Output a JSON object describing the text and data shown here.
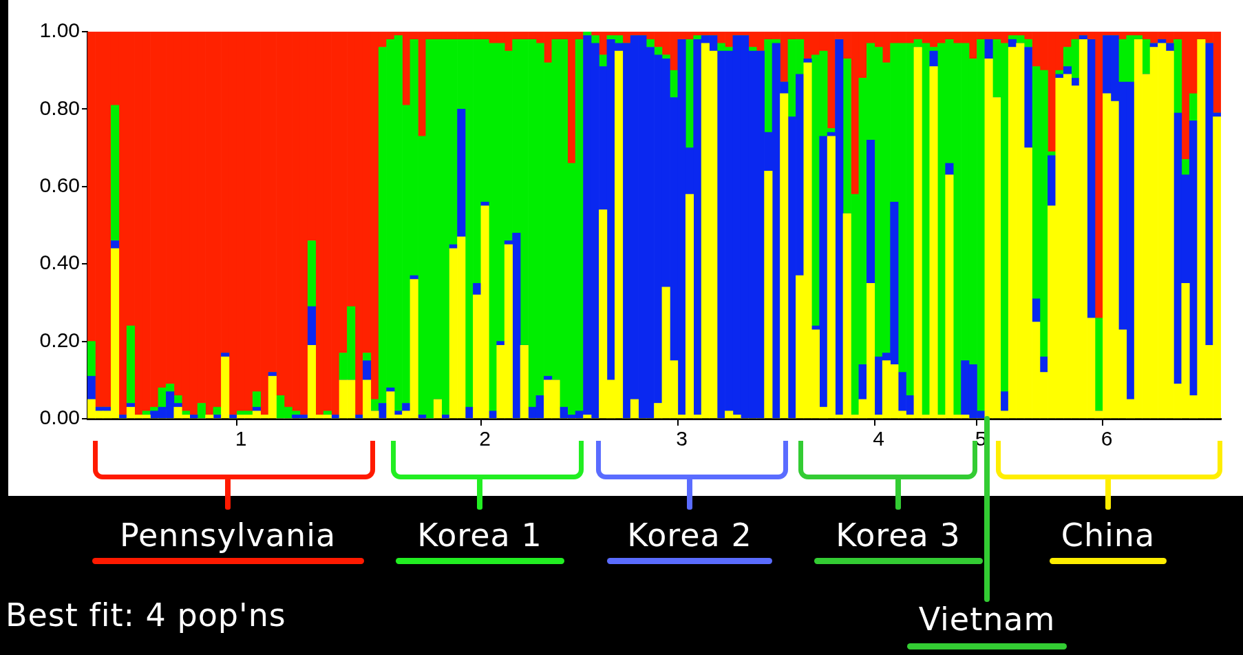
{
  "chart_data": {
    "type": "bar",
    "stacked": true,
    "categories": [
      null,
      null,
      null,
      null,
      null,
      null,
      null,
      null,
      null,
      null,
      null,
      null,
      null,
      null,
      null,
      null,
      null,
      null,
      null,
      "1",
      null,
      null,
      null,
      null,
      null,
      null,
      null,
      null,
      null,
      null,
      null,
      null,
      null,
      null,
      null,
      null,
      null,
      null,
      null,
      null,
      null,
      null,
      null,
      null,
      null,
      null,
      null,
      null,
      null,
      null,
      "2",
      null,
      null,
      null,
      null,
      null,
      null,
      null,
      null,
      null,
      null,
      null,
      null,
      null,
      null,
      null,
      null,
      null,
      null,
      null,
      null,
      null,
      null,
      null,
      null,
      "3",
      null,
      null,
      null,
      null,
      null,
      null,
      null,
      null,
      null,
      null,
      null,
      null,
      null,
      null,
      null,
      null,
      null,
      null,
      null,
      null,
      null,
      null,
      null,
      null,
      "4",
      null,
      null,
      null,
      null,
      null,
      null,
      null,
      null,
      null,
      null,
      null,
      null,
      "5",
      null,
      null,
      null,
      null,
      null,
      null,
      null,
      null,
      null,
      null,
      null,
      null,
      null,
      null,
      null,
      "6",
      null,
      null,
      null,
      null,
      null,
      null,
      null,
      null,
      null,
      null,
      null,
      null,
      null,
      null
    ],
    "series": [
      {
        "color": "#ffff00",
        "values": [
          0.05,
          0.02,
          0.02,
          0.44,
          0,
          0.03,
          0.01,
          0.01,
          0,
          0,
          0,
          0.03,
          0.01,
          0,
          0,
          0.01,
          0,
          0.16,
          0,
          0.01,
          0.01,
          0.02,
          0.01,
          0.11,
          0,
          0,
          0,
          0,
          0.19,
          0.01,
          0.01,
          0,
          0.1,
          0.1,
          0,
          0.1,
          0.02,
          0,
          0.07,
          0.01,
          0.02,
          0.36,
          0,
          0,
          0.05,
          0,
          0.44,
          0.47,
          0,
          0.32,
          0.55,
          0,
          0.19,
          0.45,
          0,
          0.19,
          0,
          0,
          0.1,
          0.1,
          0,
          0,
          0,
          0.01,
          0,
          0.54,
          0.1,
          0.95,
          0,
          0.05,
          0,
          0,
          0.04,
          0.34,
          0.15,
          0.01,
          0.58,
          0.01,
          0.97,
          0.95,
          0,
          0.02,
          0.01,
          0,
          0,
          0,
          0.64,
          0,
          0.84,
          0,
          0.37,
          0.92,
          0.23,
          0.03,
          0.73,
          0.01,
          0.53,
          0.01,
          0.05,
          0.35,
          0.01,
          0.15,
          0.14,
          0.02,
          0.01,
          0.96,
          0.01,
          0.91,
          0.01,
          0.63,
          0.01,
          0.01,
          0,
          0,
          0.93,
          0.83,
          0.02,
          0.96,
          0.97,
          0.7,
          0.25,
          0.12,
          0.55,
          0.88,
          0.89,
          0.86,
          0.98,
          0.26,
          0.02,
          0.84,
          0.82,
          0.23,
          0.05,
          0.98,
          0.89,
          0.96,
          0.97,
          0.95,
          0.09,
          0.35,
          0.06,
          0.98,
          0.19,
          0.78
        ]
      },
      {
        "color": "#0a28f0",
        "values": [
          0.06,
          0.01,
          0.01,
          0.02,
          0.01,
          0.01,
          0,
          0,
          0.02,
          0.03,
          0.07,
          0.01,
          0,
          0.01,
          0,
          0,
          0.01,
          0.01,
          0.01,
          0,
          0,
          0.01,
          0,
          0.01,
          0,
          0,
          0.01,
          0.01,
          0.1,
          0,
          0,
          0.01,
          0,
          0,
          0.01,
          0.05,
          0,
          0.04,
          0.01,
          0.01,
          0.02,
          0.01,
          0.01,
          0,
          0,
          0.01,
          0.01,
          0.33,
          0.03,
          0.03,
          0.01,
          0.02,
          0.01,
          0.01,
          0.48,
          0,
          0.03,
          0.06,
          0.01,
          0,
          0.03,
          0.01,
          0.02,
          0.98,
          0.97,
          0.37,
          0.88,
          0.02,
          0.97,
          0.94,
          0.99,
          0.96,
          0.9,
          0.59,
          0.68,
          0.97,
          0.12,
          0.97,
          0.02,
          0.04,
          0.95,
          0.93,
          0.98,
          0.99,
          0.95,
          0.95,
          0.1,
          0.97,
          0.03,
          0.78,
          0.52,
          0.01,
          0.01,
          0.7,
          0.01,
          0.97,
          0,
          0,
          0.09,
          0.37,
          0.15,
          0.02,
          0.42,
          0.1,
          0.05,
          0,
          0,
          0.04,
          0,
          0.03,
          0,
          0.14,
          0.14,
          0.02,
          0.05,
          0,
          0.05,
          0.02,
          0,
          0.26,
          0.06,
          0.04,
          0.13,
          0.01,
          0.02,
          0.02,
          0.01,
          0.72,
          0,
          0.15,
          0.17,
          0.64,
          0.82,
          0,
          0,
          0.01,
          0.01,
          0.02,
          0.7,
          0.28,
          0.71,
          0,
          0.78,
          0.01
        ]
      },
      {
        "color": "#00ee00",
        "values": [
          0.09,
          0,
          0,
          0.35,
          0,
          0.2,
          0,
          0.01,
          0.01,
          0.05,
          0.02,
          0.02,
          0.01,
          0,
          0.04,
          0,
          0.02,
          0,
          0,
          0.01,
          0.01,
          0.04,
          0,
          0,
          0.06,
          0.03,
          0.01,
          0,
          0.17,
          0,
          0.01,
          0,
          0.07,
          0.19,
          0,
          0.02,
          0.03,
          0.92,
          0.9,
          0.97,
          0.77,
          0.61,
          0.72,
          0.98,
          0.93,
          0.97,
          0.53,
          0.18,
          0.95,
          0.63,
          0.42,
          0.95,
          0.77,
          0.49,
          0.5,
          0.79,
          0.95,
          0.91,
          0.81,
          0.88,
          0.95,
          0.65,
          0.96,
          0.01,
          0.02,
          0.03,
          0.01,
          0.02,
          0,
          0,
          0,
          0.02,
          0.02,
          0.01,
          0.07,
          0,
          0.28,
          0.01,
          0,
          0,
          0.02,
          0.01,
          0,
          0,
          0.01,
          0,
          0.24,
          0.01,
          0,
          0.2,
          0.09,
          0,
          0.7,
          0.22,
          0.01,
          0,
          0.4,
          0.57,
          0.74,
          0.25,
          0.8,
          0.75,
          0.41,
          0.85,
          0.91,
          0.02,
          0.96,
          0.01,
          0.96,
          0.32,
          0.96,
          0.82,
          0.79,
          0.96,
          0,
          0.15,
          0.9,
          0.01,
          0.02,
          0.02,
          0.6,
          0.74,
          0.01,
          0.01,
          0.05,
          0.1,
          0,
          0,
          0.24,
          0,
          0,
          0.11,
          0.12,
          0.01,
          0.09,
          0,
          0,
          0,
          0.19,
          0.04,
          0.07,
          0,
          0,
          0
        ]
      },
      {
        "color": "#ff2200",
        "values": [
          0.8,
          0.97,
          0.97,
          0.19,
          0.99,
          0.76,
          0.99,
          0.98,
          0.97,
          0.92,
          0.91,
          0.94,
          0.98,
          0.99,
          0.96,
          0.99,
          0.97,
          0.83,
          0.99,
          0.98,
          0.98,
          0.93,
          0.99,
          0.88,
          0.94,
          0.97,
          0.98,
          0.99,
          0.54,
          0.99,
          0.98,
          0.99,
          0.83,
          0.71,
          0.99,
          0.83,
          0.95,
          0.04,
          0.02,
          0.01,
          0.19,
          0.02,
          0.27,
          0.02,
          0.02,
          0.02,
          0.02,
          0.02,
          0.02,
          0.02,
          0.02,
          0.03,
          0.03,
          0.05,
          0.02,
          0.02,
          0.02,
          0.03,
          0.08,
          0.02,
          0.02,
          0.34,
          0.02,
          0,
          0.01,
          0.06,
          0.01,
          0.01,
          0.03,
          0.01,
          0.01,
          0.02,
          0.04,
          0.06,
          0.1,
          0.02,
          0.02,
          0.01,
          0.01,
          0.01,
          0.03,
          0.04,
          0.01,
          0.01,
          0.04,
          0.05,
          0.02,
          0.02,
          0.13,
          0.02,
          0.02,
          0.07,
          0.06,
          0.05,
          0.25,
          0.02,
          0.07,
          0.42,
          0.12,
          0.03,
          0.04,
          0.08,
          0.03,
          0.03,
          0.03,
          0.02,
          0.03,
          0.04,
          0.03,
          0.02,
          0.03,
          0.03,
          0.07,
          0.02,
          0.02,
          0.02,
          0.03,
          0.01,
          0.01,
          0.02,
          0.09,
          0.1,
          0.31,
          0.1,
          0.04,
          0.02,
          0.01,
          0.02,
          0.74,
          0.01,
          0.01,
          0.02,
          0.01,
          0.01,
          0.02,
          0.03,
          0.02,
          0.03,
          0.02,
          0.33,
          0.16,
          0.02,
          0.03,
          0.21
        ]
      }
    ],
    "ylim": [
      0,
      1
    ],
    "yticks": [
      {
        "value": 0,
        "label": "0.00"
      },
      {
        "value": 0.2,
        "label": "0.20"
      },
      {
        "value": 0.4,
        "label": "0.40"
      },
      {
        "value": 0.6,
        "label": "0.60"
      },
      {
        "value": 0.8,
        "label": "0.80"
      },
      {
        "value": 1,
        "label": "1.00"
      }
    ],
    "annotations": [
      "Pennsylvania",
      "Korea 1",
      "Korea 2",
      "Korea 3",
      "China",
      "Vietnam",
      "Best fit: 4 pop'ns"
    ]
  }
}
